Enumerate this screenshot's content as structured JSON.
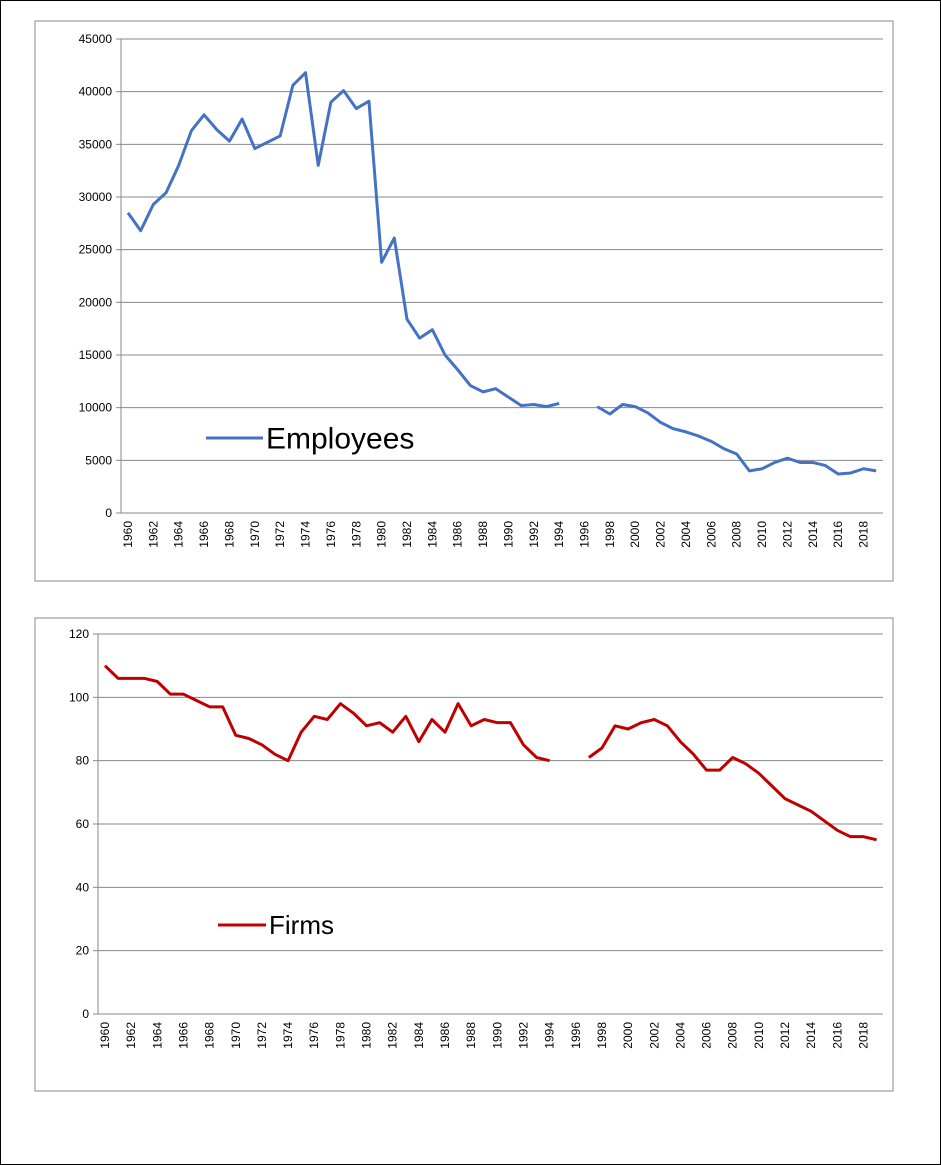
{
  "chart_data": [
    {
      "type": "line",
      "categories": [
        "1960",
        null,
        "1962",
        null,
        "1964",
        null,
        "1966",
        null,
        "1968",
        null,
        "1970",
        null,
        "1972",
        null,
        "1974",
        null,
        "1976",
        null,
        "1978",
        null,
        "1980",
        null,
        "1982",
        null,
        "1984",
        null,
        "1986",
        null,
        "1988",
        null,
        "1990",
        null,
        "1992",
        null,
        "1994",
        null,
        "1996",
        null,
        "1998",
        null,
        "2000",
        null,
        "2002",
        null,
        "2004",
        null,
        "2006",
        null,
        "2008",
        null,
        "2010",
        null,
        "2012",
        null,
        "2014",
        null,
        "2016",
        null,
        "2018",
        null
      ],
      "series": [
        {
          "name": "Employees",
          "color": "#4472c4",
          "values": [
            28500,
            26800,
            29300,
            30400,
            33000,
            36300,
            37800,
            36400,
            35300,
            37400,
            34600,
            35200,
            35800,
            40600,
            41800,
            33000,
            39000,
            40100,
            38400,
            39100,
            23800,
            26100,
            18400,
            16600,
            17400,
            15000,
            13600,
            12100,
            11500,
            11800,
            11000,
            10200,
            10300,
            10100,
            10400,
            null,
            null,
            10100,
            9400,
            10300,
            10100,
            9500,
            8600,
            8000,
            7700,
            7300,
            6800,
            6100,
            5600,
            4000,
            4200,
            4800,
            5200,
            4800,
            4800,
            4500,
            3700,
            3800,
            4200,
            4000
          ]
        }
      ],
      "ylim": [
        0,
        45000
      ],
      "yticks": [
        0,
        5000,
        10000,
        15000,
        20000,
        25000,
        30000,
        35000,
        40000,
        45000
      ],
      "grid": true
    },
    {
      "type": "line",
      "categories": [
        "1960",
        null,
        "1962",
        null,
        "1964",
        null,
        "1966",
        null,
        "1968",
        null,
        "1970",
        null,
        "1972",
        null,
        "1974",
        null,
        "1976",
        null,
        "1978",
        null,
        "1980",
        null,
        "1982",
        null,
        "1984",
        null,
        "1986",
        null,
        "1988",
        null,
        "1990",
        null,
        "1992",
        null,
        "1994",
        null,
        "1996",
        null,
        "1998",
        null,
        "2000",
        null,
        "2002",
        null,
        "2004",
        null,
        "2006",
        null,
        "2008",
        null,
        "2010",
        null,
        "2012",
        null,
        "2014",
        null,
        "2016",
        null,
        "2018",
        null
      ],
      "series": [
        {
          "name": "Firms",
          "color": "#c00000",
          "values": [
            110,
            106,
            106,
            106,
            105,
            101,
            101,
            99,
            97,
            97,
            88,
            87,
            85,
            82,
            80,
            89,
            94,
            93,
            98,
            95,
            91,
            92,
            89,
            94,
            86,
            93,
            89,
            98,
            91,
            93,
            92,
            92,
            85,
            81,
            80,
            null,
            null,
            81,
            84,
            91,
            90,
            92,
            93,
            91,
            86,
            82,
            77,
            77,
            81,
            79,
            76,
            72,
            68,
            66,
            64,
            61,
            58,
            56,
            56,
            55
          ]
        }
      ],
      "ylim": [
        0,
        120
      ],
      "yticks": [
        0,
        20,
        40,
        60,
        80,
        100,
        120
      ],
      "grid": true
    }
  ]
}
